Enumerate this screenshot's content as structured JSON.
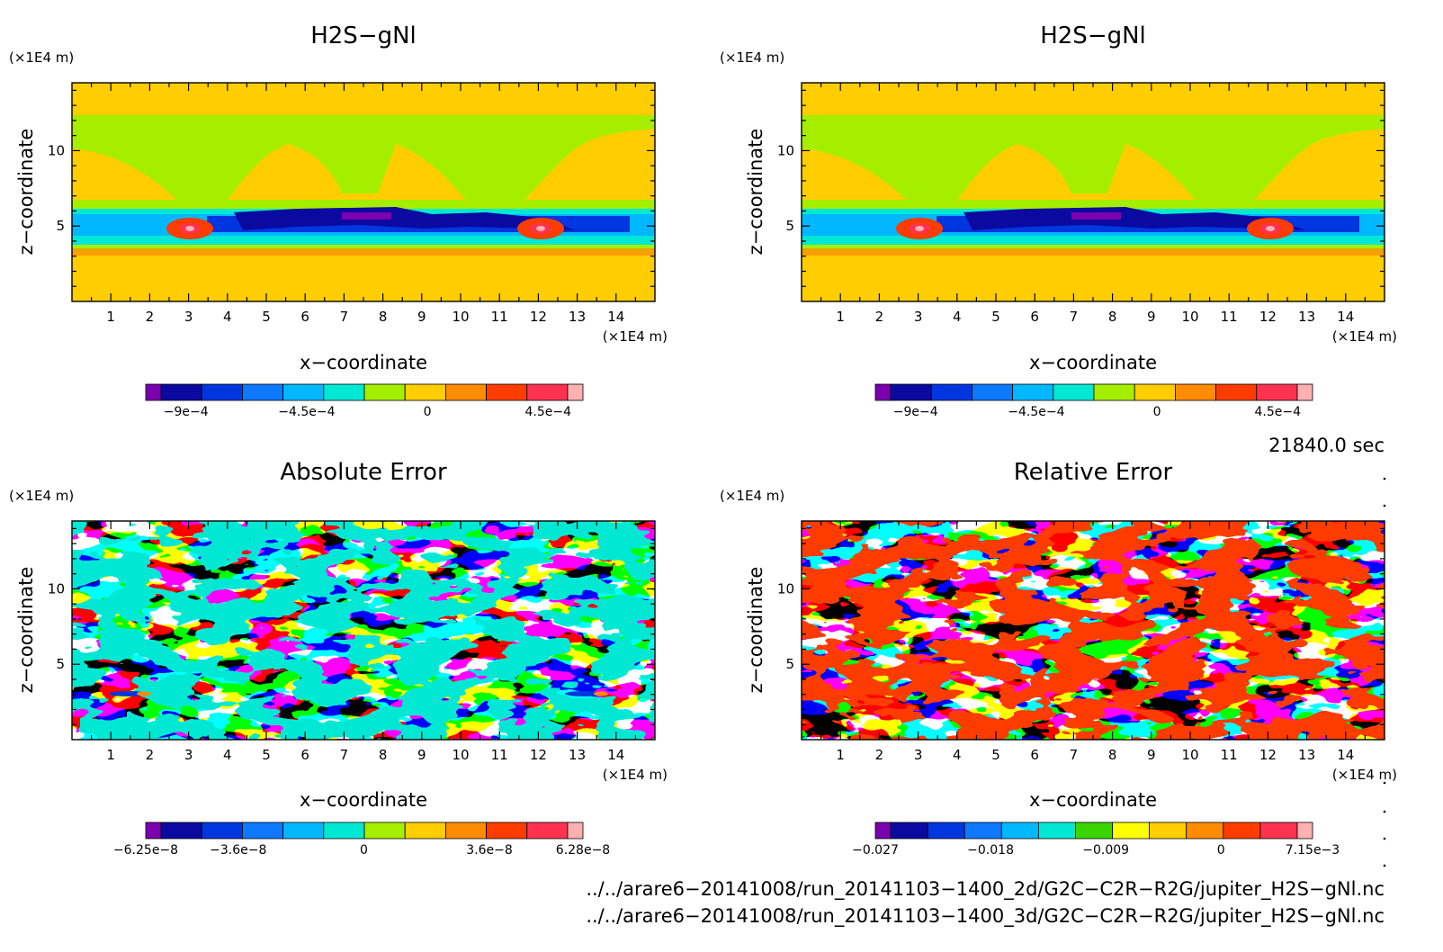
{
  "chart_data": [
    {
      "type": "heatmap",
      "title": "H2S−gNl",
      "xlabel": "x−coordinate",
      "ylabel": "z−coordinate",
      "x_unit": "(×1E4 m)",
      "y_unit": "(×1E4 m)",
      "xlim": [
        0,
        15
      ],
      "ylim": [
        0,
        14.5
      ],
      "x_ticks": [
        "1",
        "2",
        "3",
        "4",
        "5",
        "6",
        "7",
        "8",
        "9",
        "10",
        "11",
        "12",
        "13",
        "14"
      ],
      "y_ticks": [
        "5",
        "10"
      ],
      "colorbar": {
        "colors": [
          "#7a00b0",
          "#0a0aa0",
          "#0036e0",
          "#0e78ff",
          "#00b8ff",
          "#00e8d4",
          "#a6ee00",
          "#ffcd00",
          "#ff8c00",
          "#ff3c00",
          "#ff3250",
          "#ffb0b0"
        ],
        "labels": [
          "−9e−4",
          "−4.5e−4",
          "0",
          "4.5e−4"
        ],
        "label_values": [
          -0.0009,
          -0.00045,
          0,
          0.00045
        ],
        "range": [
          -0.00105,
          0.00058
        ]
      }
    },
    {
      "type": "heatmap",
      "title": "H2S−gNl",
      "xlabel": "x−coordinate",
      "ylabel": "z−coordinate",
      "x_unit": "(×1E4 m)",
      "y_unit": "(×1E4 m)",
      "xlim": [
        0,
        15
      ],
      "ylim": [
        0,
        14.5
      ],
      "x_ticks": [
        "1",
        "2",
        "3",
        "4",
        "5",
        "6",
        "7",
        "8",
        "9",
        "10",
        "11",
        "12",
        "13",
        "14"
      ],
      "y_ticks": [
        "5",
        "10"
      ],
      "colorbar": {
        "colors": [
          "#7a00b0",
          "#0a0aa0",
          "#0036e0",
          "#0e78ff",
          "#00b8ff",
          "#00e8d4",
          "#a6ee00",
          "#ffcd00",
          "#ff8c00",
          "#ff3c00",
          "#ff3250",
          "#ffb0b0"
        ],
        "labels": [
          "−9e−4",
          "−4.5e−4",
          "0",
          "4.5e−4"
        ],
        "label_values": [
          -0.0009,
          -0.00045,
          0,
          0.00045
        ],
        "range": [
          -0.00105,
          0.00058
        ]
      }
    },
    {
      "type": "heatmap",
      "title": "Absolute Error",
      "xlabel": "x−coordinate",
      "ylabel": "z−coordinate",
      "x_unit": "(×1E4 m)",
      "y_unit": "(×1E4 m)",
      "xlim": [
        0,
        15
      ],
      "ylim": [
        0,
        14.5
      ],
      "x_ticks": [
        "1",
        "2",
        "3",
        "4",
        "5",
        "6",
        "7",
        "8",
        "9",
        "10",
        "11",
        "12",
        "13",
        "14"
      ],
      "y_ticks": [
        "5",
        "10"
      ],
      "colorbar": {
        "colors": [
          "#7a00b0",
          "#0a0aa0",
          "#0036e0",
          "#0e78ff",
          "#00b8ff",
          "#00e8d4",
          "#a6ee00",
          "#ffcd00",
          "#ff8c00",
          "#ff3c00",
          "#ff3250",
          "#ffb0b0"
        ],
        "labels": [
          "−6.25e−8",
          "−3.6e−8",
          "0",
          "3.6e−8",
          "6.28e−8"
        ],
        "label_values": [
          -6.25e-08,
          -3.6e-08,
          0,
          3.6e-08,
          6.28e-08
        ],
        "range": [
          -6.25e-08,
          6.28e-08
        ]
      }
    },
    {
      "type": "heatmap",
      "title": "Relative Error",
      "xlabel": "x−coordinate",
      "ylabel": "z−coordinate",
      "x_unit": "(×1E4 m)",
      "y_unit": "(×1E4 m)",
      "xlim": [
        0,
        15
      ],
      "ylim": [
        0,
        14.5
      ],
      "x_ticks": [
        "1",
        "2",
        "3",
        "4",
        "5",
        "6",
        "7",
        "8",
        "9",
        "10",
        "11",
        "12",
        "13",
        "14"
      ],
      "y_ticks": [
        "5",
        "10"
      ],
      "colorbar": {
        "colors": [
          "#7a00b0",
          "#0a0aa0",
          "#0036e0",
          "#0e78ff",
          "#00b8ff",
          "#00e8d4",
          "#3ad400",
          "#ffff00",
          "#ffcd00",
          "#ff8c00",
          "#ff3c00",
          "#ff3250",
          "#ffb0b0"
        ],
        "labels": [
          "−0.027",
          "−0.018",
          "−0.009",
          "0",
          "7.15e−3"
        ],
        "label_values": [
          -0.027,
          -0.018,
          -0.009,
          0,
          0.00715
        ],
        "range": [
          -0.027,
          0.00715
        ]
      }
    }
  ],
  "time_label": "21840.0 sec",
  "footer": {
    "file1": "../../arare6−20141008/run_20141103−1400_2d/G2C−C2R−R2G/jupiter_H2S−gNl.nc",
    "file2": "../../arare6−20141008/run_20141103−1400_3d/G2C−C2R−R2G/jupiter_H2S−gNl.nc"
  }
}
